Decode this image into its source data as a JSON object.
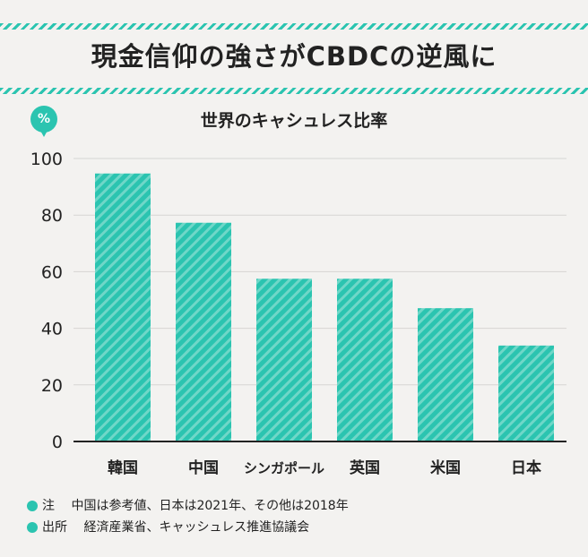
{
  "headline": "現金信仰の強さがCBDCの逆風に",
  "unit_badge": "%",
  "colors": {
    "accent": "#2bc4b0",
    "stripe": "#6fd7c8"
  },
  "chart_data": {
    "type": "bar",
    "title": "世界のキャシュレス比率",
    "ylabel": "%",
    "xlabel": "",
    "categories": [
      "韓国",
      "中国",
      "シンガポール",
      "英国",
      "米国",
      "日本"
    ],
    "values": [
      94.7,
      77.3,
      57.5,
      57.5,
      47.1,
      33.9
    ],
    "ylim": [
      0,
      100
    ],
    "yticks": [
      0,
      20,
      40,
      60,
      80,
      100
    ],
    "grid": true
  },
  "notes": [
    {
      "label": "注",
      "text": "中国は参考値、日本は2021年、その他は2018年"
    },
    {
      "label": "出所",
      "text": "経済産業省、キャッシュレス推進協議会"
    }
  ]
}
